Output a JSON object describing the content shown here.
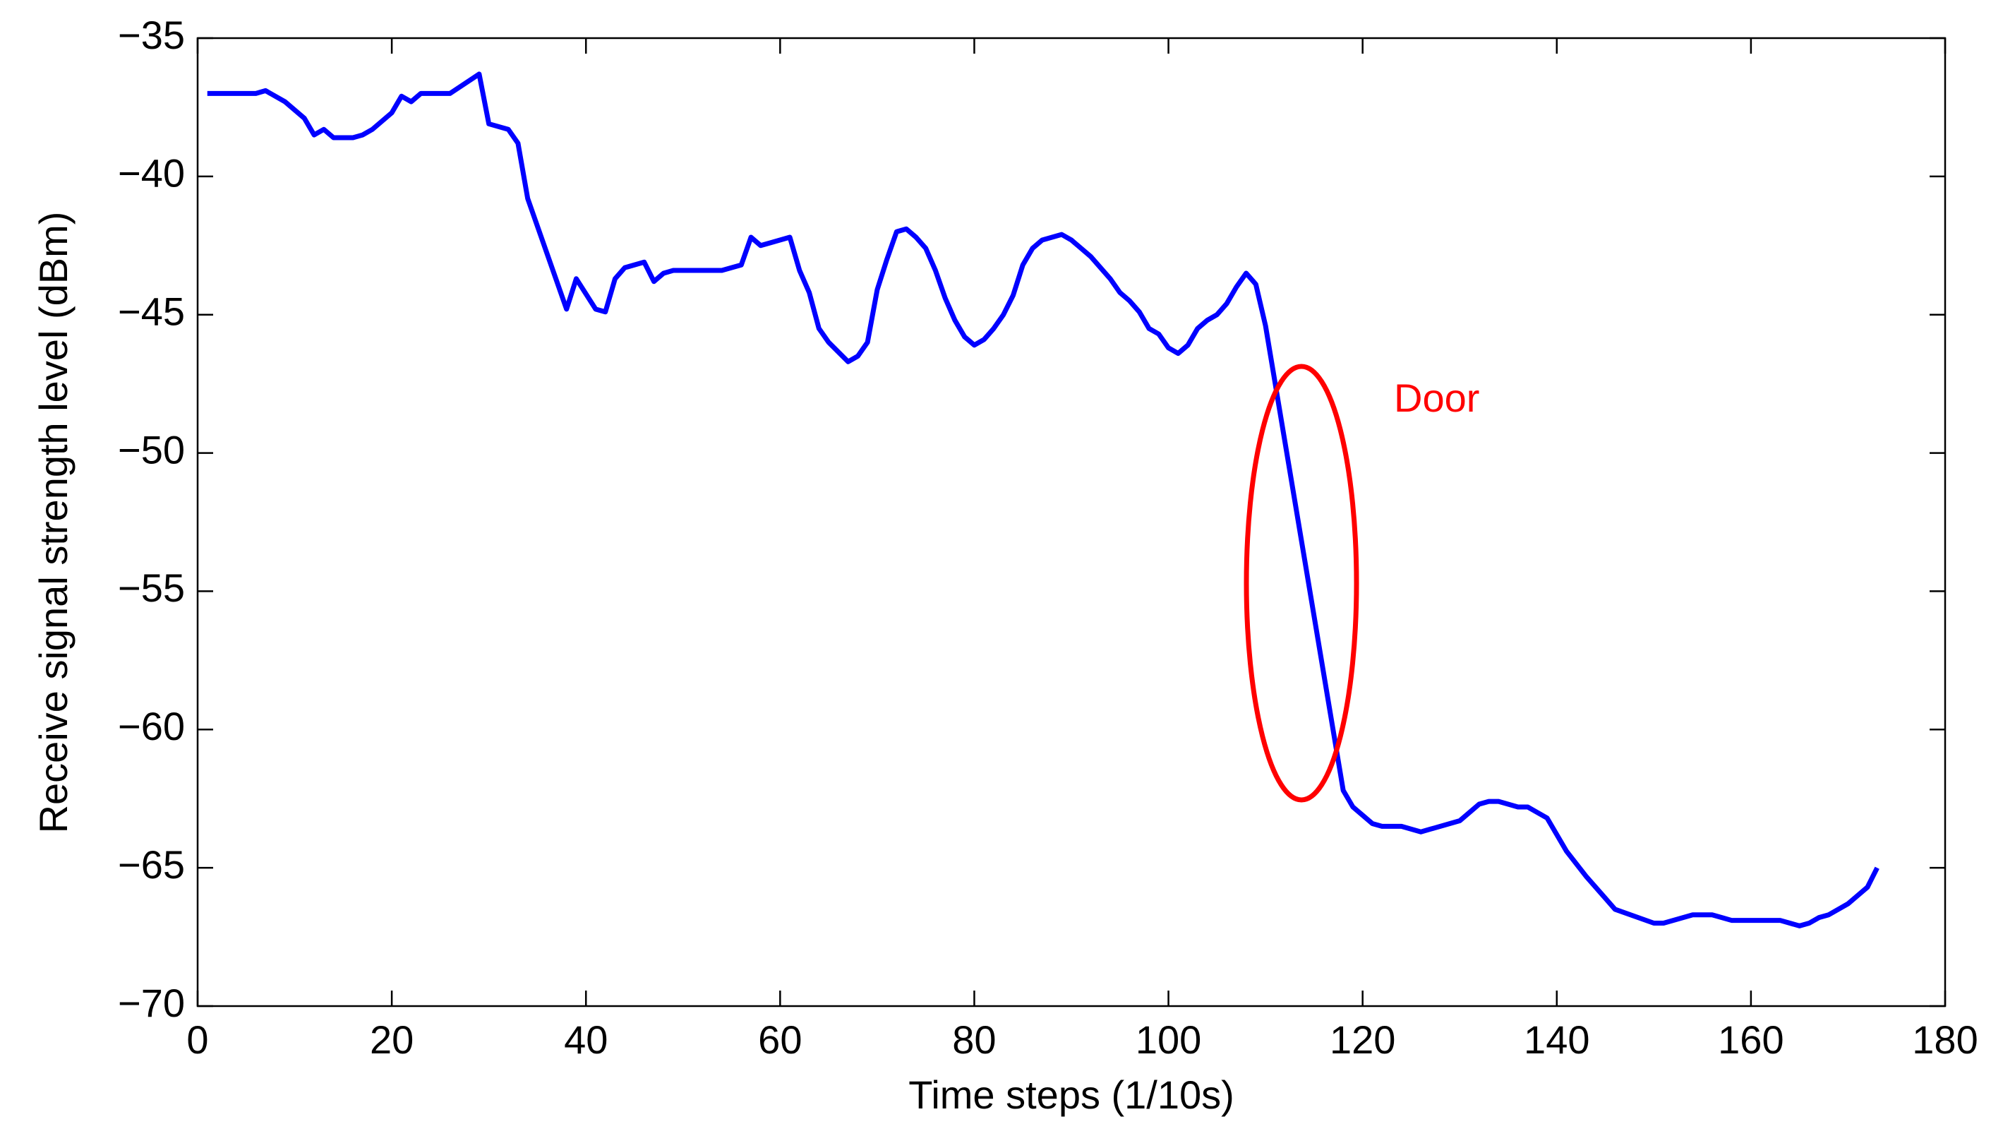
{
  "chart_data": {
    "type": "line",
    "x_label": "Time steps (1/10s)",
    "y_label": "Receive signal strength level (dBm)",
    "annotation": "Door",
    "xlim": [
      0,
      180
    ],
    "xticks": [
      0,
      20,
      40,
      60,
      80,
      100,
      120,
      140,
      160,
      180
    ],
    "ylim": [
      -70,
      -35
    ],
    "yticks": [
      {
        "value": -70,
        "label": "−70"
      },
      {
        "value": -65,
        "label": "−65"
      },
      {
        "value": -60,
        "label": "−60"
      },
      {
        "value": -55,
        "label": "−55"
      },
      {
        "value": -50,
        "label": "−50"
      },
      {
        "value": -45,
        "label": "−45"
      },
      {
        "value": -40,
        "label": "−40"
      },
      {
        "value": -35,
        "label": "−35"
      }
    ],
    "grid": false,
    "series": [
      {
        "color": "#0000ff",
        "x": [
          1,
          6,
          7,
          9,
          11,
          12,
          13,
          14,
          16,
          17,
          18,
          20,
          21,
          22,
          23,
          26,
          29,
          30,
          32,
          33,
          34,
          38,
          39,
          41,
          42,
          43,
          44,
          46,
          47,
          48,
          49,
          54,
          55,
          56,
          57,
          58,
          59,
          61,
          62,
          63,
          64,
          65,
          67,
          68,
          69,
          70,
          71,
          72,
          73,
          74,
          75,
          76,
          77,
          78,
          79,
          80,
          81,
          82,
          83,
          84,
          85,
          86,
          87,
          89,
          90,
          92,
          94,
          95,
          96,
          97,
          98,
          99,
          100,
          101,
          102,
          103,
          104,
          105,
          106,
          107,
          108,
          109,
          110,
          118,
          119,
          120,
          121,
          122,
          124,
          126,
          127,
          130,
          132,
          133,
          134,
          136,
          137,
          139,
          140,
          141,
          143,
          145,
          146,
          150,
          151,
          154,
          156,
          157,
          158,
          163,
          165,
          166,
          167,
          168,
          170,
          172,
          173
        ],
        "values": [
          -37,
          -37,
          -36.9,
          -37.3,
          -37.9,
          -38.5,
          -38.3,
          -38.6,
          -38.6,
          -38.5,
          -38.3,
          -37.7,
          -37.1,
          -37.3,
          -37,
          -37,
          -36.3,
          -38.1,
          -38.3,
          -38.8,
          -40.8,
          -44.8,
          -43.7,
          -44.8,
          -44.9,
          -43.7,
          -43.3,
          -43.1,
          -43.8,
          -43.5,
          -43.4,
          -43.4,
          -43.3,
          -43.2,
          -42.2,
          -42.5,
          -42.4,
          -42.2,
          -43.4,
          -44.2,
          -45.5,
          -46,
          -46.7,
          -46.5,
          -46,
          -44.1,
          -43,
          -42,
          -41.9,
          -42.2,
          -42.6,
          -43.4,
          -44.4,
          -45.2,
          -45.8,
          -46.1,
          -45.9,
          -45.5,
          -45,
          -44.3,
          -43.2,
          -42.6,
          -42.3,
          -42.1,
          -42.3,
          -42.9,
          -43.7,
          -44.2,
          -44.5,
          -44.9,
          -45.5,
          -45.7,
          -46.2,
          -46.4,
          -46.1,
          -45.5,
          -45.2,
          -45,
          -44.6,
          -44,
          -43.5,
          -43.9,
          -45.4,
          -62.2,
          -62.8,
          -63.1,
          -63.4,
          -63.5,
          -63.5,
          -63.7,
          -63.6,
          -63.3,
          -62.7,
          -62.6,
          -62.6,
          -62.8,
          -62.8,
          -63.2,
          -63.8,
          -64.4,
          -65.3,
          -66.1,
          -66.5,
          -67,
          -67,
          -66.7,
          -66.7,
          -66.8,
          -66.9,
          -66.9,
          -67.1,
          -67,
          -66.8,
          -66.7,
          -66.3,
          -65.7,
          -65
        ]
      }
    ]
  }
}
